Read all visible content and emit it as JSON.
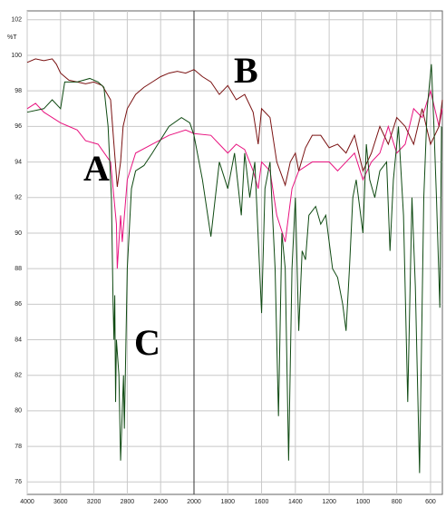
{
  "chart_data": {
    "type": "line",
    "ylabel": "%T",
    "xlim": [
      4000,
      530
    ],
    "ylim": [
      75.3,
      102.5
    ],
    "x_break": 2000,
    "xticks": [
      4000,
      3600,
      3200,
      2800,
      2400,
      2000,
      1800,
      1600,
      1400,
      1200,
      1000,
      800,
      600
    ],
    "yticks": [
      76,
      78,
      80,
      82,
      84,
      86,
      88,
      90,
      92,
      94,
      96,
      98,
      100,
      102
    ],
    "grid": true,
    "series": [
      {
        "name": "A",
        "color": "#e8137f",
        "x": [
          4000,
          3900,
          3800,
          3700,
          3600,
          3500,
          3400,
          3300,
          3150,
          3000,
          2960,
          2930,
          2920,
          2880,
          2860,
          2800,
          2700,
          2500,
          2300,
          2100,
          2000,
          1900,
          1850,
          1800,
          1750,
          1700,
          1650,
          1620,
          1600,
          1550,
          1510,
          1460,
          1420,
          1380,
          1300,
          1200,
          1150,
          1100,
          1050,
          1000,
          950,
          900,
          850,
          800,
          750,
          700,
          650,
          600,
          550,
          530
        ],
        "values": [
          97,
          97.3,
          96.8,
          96.5,
          96.2,
          96,
          95.8,
          95.2,
          95,
          94,
          92,
          90.5,
          88,
          91,
          89.5,
          93,
          94.5,
          95,
          95.5,
          95.8,
          95.6,
          95.5,
          95,
          94.5,
          95,
          94.7,
          93.5,
          92.5,
          94,
          93.5,
          91,
          89.5,
          92.5,
          93.5,
          94,
          94,
          93.5,
          94,
          94.5,
          93,
          94,
          94.5,
          96,
          94.5,
          95,
          97,
          96.5,
          98,
          96,
          97
        ]
      },
      {
        "name": "B",
        "color": "#7a1212",
        "x": [
          4000,
          3900,
          3800,
          3700,
          3650,
          3600,
          3500,
          3400,
          3300,
          3200,
          3100,
          3000,
          2960,
          2920,
          2880,
          2850,
          2800,
          2700,
          2600,
          2500,
          2400,
          2300,
          2200,
          2100,
          2000,
          1950,
          1900,
          1850,
          1800,
          1750,
          1700,
          1650,
          1620,
          1600,
          1550,
          1510,
          1460,
          1430,
          1400,
          1380,
          1340,
          1300,
          1250,
          1200,
          1150,
          1100,
          1050,
          1000,
          950,
          900,
          850,
          800,
          750,
          700,
          650,
          600,
          550,
          530
        ],
        "values": [
          99.6,
          99.8,
          99.7,
          99.8,
          99.5,
          99,
          98.6,
          98.5,
          98.4,
          98.5,
          98.3,
          97.5,
          95,
          92.6,
          94,
          96,
          97,
          97.8,
          98.2,
          98.5,
          98.8,
          99,
          99.1,
          99,
          99.2,
          98.8,
          98.5,
          97.8,
          98.3,
          97.5,
          97.8,
          96.8,
          95,
          97,
          96.5,
          94,
          92.7,
          94,
          94.5,
          93.5,
          94.8,
          95.5,
          95.5,
          94.8,
          95,
          94.5,
          95.5,
          93.5,
          94.5,
          96,
          95,
          96.5,
          96,
          95,
          97,
          95,
          96,
          97.5
        ]
      },
      {
        "name": "C",
        "color": "#0f4a12",
        "x": [
          4000,
          3800,
          3700,
          3600,
          3550,
          3400,
          3250,
          3150,
          3080,
          3030,
          2990,
          2970,
          2960,
          2950,
          2940,
          2930,
          2900,
          2880,
          2860,
          2845,
          2835,
          2800,
          2750,
          2700,
          2600,
          2500,
          2300,
          2150,
          2050,
          2000,
          1950,
          1900,
          1850,
          1800,
          1760,
          1720,
          1700,
          1670,
          1640,
          1600,
          1580,
          1550,
          1520,
          1500,
          1480,
          1460,
          1440,
          1420,
          1400,
          1380,
          1360,
          1340,
          1320,
          1280,
          1250,
          1220,
          1180,
          1150,
          1120,
          1100,
          1080,
          1060,
          1040,
          1000,
          980,
          960,
          930,
          900,
          860,
          840,
          820,
          790,
          760,
          735,
          710,
          690,
          665,
          640,
          620,
          595,
          580,
          565,
          545,
          535
        ],
        "values": [
          96.8,
          97,
          97.5,
          97,
          98.5,
          98.5,
          98.7,
          98.5,
          98.2,
          96,
          92,
          86,
          84,
          86.5,
          80.5,
          84,
          82,
          77.2,
          80,
          82,
          79,
          88,
          92.5,
          93.5,
          93.8,
          94.5,
          96,
          96.5,
          96.2,
          95.5,
          93,
          89.8,
          94,
          92.5,
          94.5,
          91,
          94.5,
          92,
          94,
          85.5,
          92.5,
          94,
          88,
          79.7,
          90,
          88,
          77.2,
          88,
          92,
          84.5,
          89,
          88.5,
          91,
          91.5,
          90.5,
          91,
          88,
          87.5,
          86,
          84.5,
          88,
          92,
          93,
          90,
          95,
          93,
          92,
          93.5,
          94,
          89,
          93,
          96,
          91,
          80.5,
          92,
          87,
          76.5,
          92,
          97,
          99.5,
          96,
          92,
          85.8,
          96
        ]
      }
    ]
  }
}
